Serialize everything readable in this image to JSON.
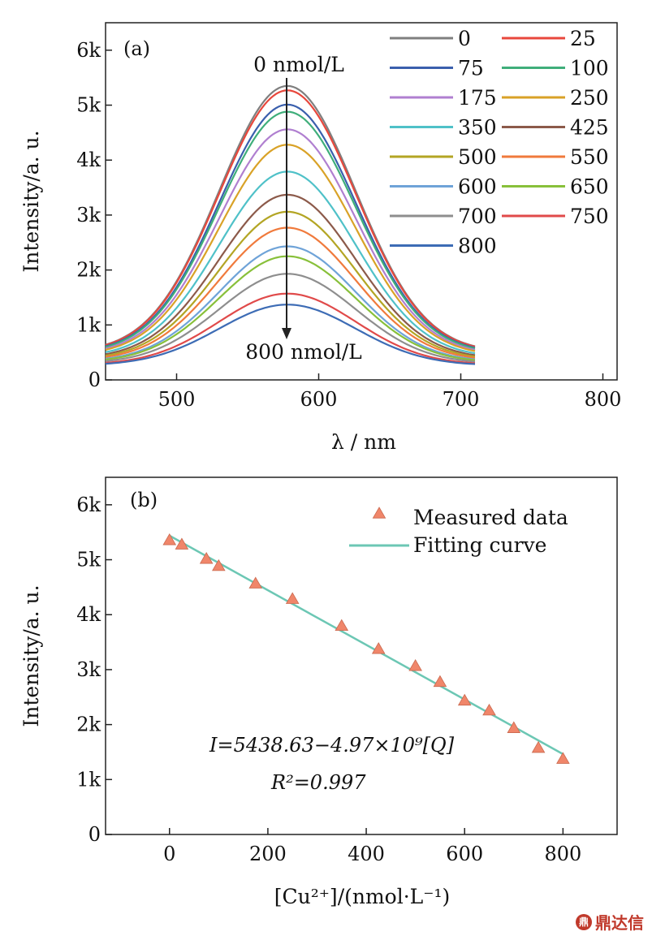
{
  "chart_data": [
    {
      "type": "line",
      "panel_label": "(a)",
      "xlabel": "λ / nm",
      "ylabel": "Intensity/a. u.",
      "xlim": [
        450,
        810
      ],
      "ylim": [
        0,
        6500
      ],
      "xticks": [
        500,
        600,
        700,
        800
      ],
      "xtick_labels": [
        "500",
        "600",
        "700",
        "800"
      ],
      "yticks": [
        0,
        1000,
        2000,
        3000,
        4000,
        5000,
        6000
      ],
      "ytick_labels": [
        "0",
        "1k",
        "2k",
        "3k",
        "4k",
        "5k",
        "6k"
      ],
      "x_range_plotted": [
        450,
        710
      ],
      "peak_wavelength": 578,
      "annotation_top": "0 nmol/L",
      "annotation_bottom": "800 nmol/L",
      "legend_position": "top-right",
      "grid": false,
      "series": [
        {
          "name": "0",
          "color": "#7f7f7f",
          "peak": 5350
        },
        {
          "name": "25",
          "color": "#e8473c",
          "peak": 5270
        },
        {
          "name": "75",
          "color": "#3a5fad",
          "peak": 5010
        },
        {
          "name": "100",
          "color": "#3fae7a",
          "peak": 4880
        },
        {
          "name": "175",
          "color": "#b07fd0",
          "peak": 4560
        },
        {
          "name": "250",
          "color": "#d9a227",
          "peak": 4280
        },
        {
          "name": "350",
          "color": "#4fc1c8",
          "peak": 3790
        },
        {
          "name": "425",
          "color": "#8c5a4a",
          "peak": 3370
        },
        {
          "name": "500",
          "color": "#b3a524",
          "peak": 3060
        },
        {
          "name": "550",
          "color": "#f07a3c",
          "peak": 2770
        },
        {
          "name": "600",
          "color": "#6fa3d8",
          "peak": 2430
        },
        {
          "name": "650",
          "color": "#88c03a",
          "peak": 2250
        },
        {
          "name": "700",
          "color": "#8e8e8e",
          "peak": 1930
        },
        {
          "name": "750",
          "color": "#e04a4a",
          "peak": 1570
        },
        {
          "name": "800",
          "color": "#3d6cb5",
          "peak": 1370
        }
      ]
    },
    {
      "type": "scatter",
      "panel_label": "(b)",
      "xlabel": "[Cu²⁺]/(nmol·L⁻¹)",
      "ylabel": "Intensity/a. u.",
      "xlim": [
        -130,
        910
      ],
      "ylim": [
        0,
        6500
      ],
      "xticks": [
        0,
        200,
        400,
        600,
        800
      ],
      "xtick_labels": [
        "0",
        "200",
        "400",
        "600",
        "800"
      ],
      "yticks": [
        0,
        1000,
        2000,
        3000,
        4000,
        5000,
        6000
      ],
      "ytick_labels": [
        "0",
        "1k",
        "2k",
        "3k",
        "4k",
        "5k",
        "6k"
      ],
      "legend_position": "top-right",
      "grid": false,
      "series": [
        {
          "name": "Measured data",
          "marker": "triangle",
          "color": "#f0866a",
          "x": [
            0,
            25,
            75,
            100,
            175,
            250,
            350,
            425,
            500,
            550,
            600,
            650,
            700,
            750,
            800
          ],
          "y": [
            5350,
            5270,
            5010,
            4880,
            4560,
            4280,
            3790,
            3370,
            3060,
            2770,
            2430,
            2250,
            1930,
            1570,
            1370
          ]
        },
        {
          "name": "Fitting curve",
          "color": "#6cc7b4",
          "x": [
            0,
            800
          ],
          "y": [
            5438.63,
            1462.63
          ]
        }
      ],
      "equation": "I=5438.63−4.97×10⁹[Q]",
      "r_squared": "R²=0.997"
    }
  ],
  "watermark": {
    "mark": "鼎",
    "text": "鼎达信"
  }
}
